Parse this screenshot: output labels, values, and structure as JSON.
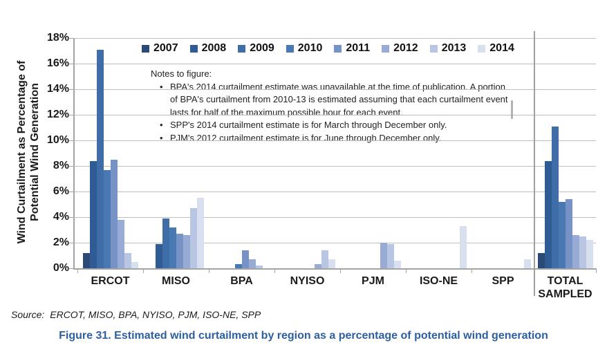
{
  "figure": {
    "caption": "Figure 31. Estimated wind curtailment by region as a percentage of potential wind generation",
    "source_label": "Source:",
    "source_text": "ERCOT, MISO, BPA, NYISO, PJM, ISO-NE, SPP"
  },
  "notes": {
    "title": "Notes to figure:",
    "bullets": [
      "BPA's 2014 curtailment estimate was unavailable at the time of publication. A portion of BPA's curtailment from 2010-13 is estimated assuming that each curtailment event lasts for half of the maximum possible hour for each event.",
      "SPP's 2014 curtailment estimate is for March through December only.",
      "PJM's 2012 curtailment estimate is for June through December only."
    ]
  },
  "chart_data": {
    "type": "bar",
    "title": "",
    "xlabel": "",
    "ylabel": "Wind Curtailment as Percentage of Potential Wind Generation",
    "ylabel_lines": [
      "Wind Curtailment as Percentage of",
      "Potential Wind Generation"
    ],
    "ylim": [
      0,
      18
    ],
    "ytick_step": 2,
    "ytick_labels": [
      "18%",
      "16%",
      "14%",
      "12%",
      "10%",
      "8%",
      "6%",
      "4%",
      "2%",
      "0%"
    ],
    "grid": true,
    "legend_position": "top-inside",
    "categories": [
      "ERCOT",
      "MISO",
      "BPA",
      "NYISO",
      "PJM",
      "ISO-NE",
      "SPP",
      "TOTAL SAMPLED"
    ],
    "series": [
      {
        "name": "2007",
        "color": "#2b4a78",
        "values": [
          1.2,
          null,
          null,
          null,
          null,
          null,
          null,
          1.2
        ]
      },
      {
        "name": "2008",
        "color": "#2f5c95",
        "values": [
          8.4,
          1.9,
          null,
          null,
          null,
          null,
          null,
          8.4
        ]
      },
      {
        "name": "2009",
        "color": "#3e6da8",
        "values": [
          17.1,
          3.9,
          null,
          null,
          null,
          null,
          null,
          11.1
        ]
      },
      {
        "name": "2010",
        "color": "#4879b3",
        "values": [
          7.7,
          3.2,
          0.3,
          null,
          null,
          null,
          null,
          5.2
        ]
      },
      {
        "name": "2011",
        "color": "#7792c5",
        "values": [
          8.5,
          2.7,
          1.4,
          null,
          null,
          null,
          null,
          5.4
        ]
      },
      {
        "name": "2012",
        "color": "#98abd5",
        "values": [
          3.8,
          2.6,
          0.7,
          0.3,
          2.0,
          null,
          null,
          2.6
        ]
      },
      {
        "name": "2013",
        "color": "#b8c5e3",
        "values": [
          1.2,
          4.7,
          0.2,
          1.4,
          1.9,
          null,
          null,
          2.5
        ]
      },
      {
        "name": "2014",
        "color": "#d8dfef",
        "values": [
          0.5,
          5.5,
          null,
          0.7,
          0.6,
          3.3,
          0.7,
          2.2
        ]
      }
    ]
  }
}
